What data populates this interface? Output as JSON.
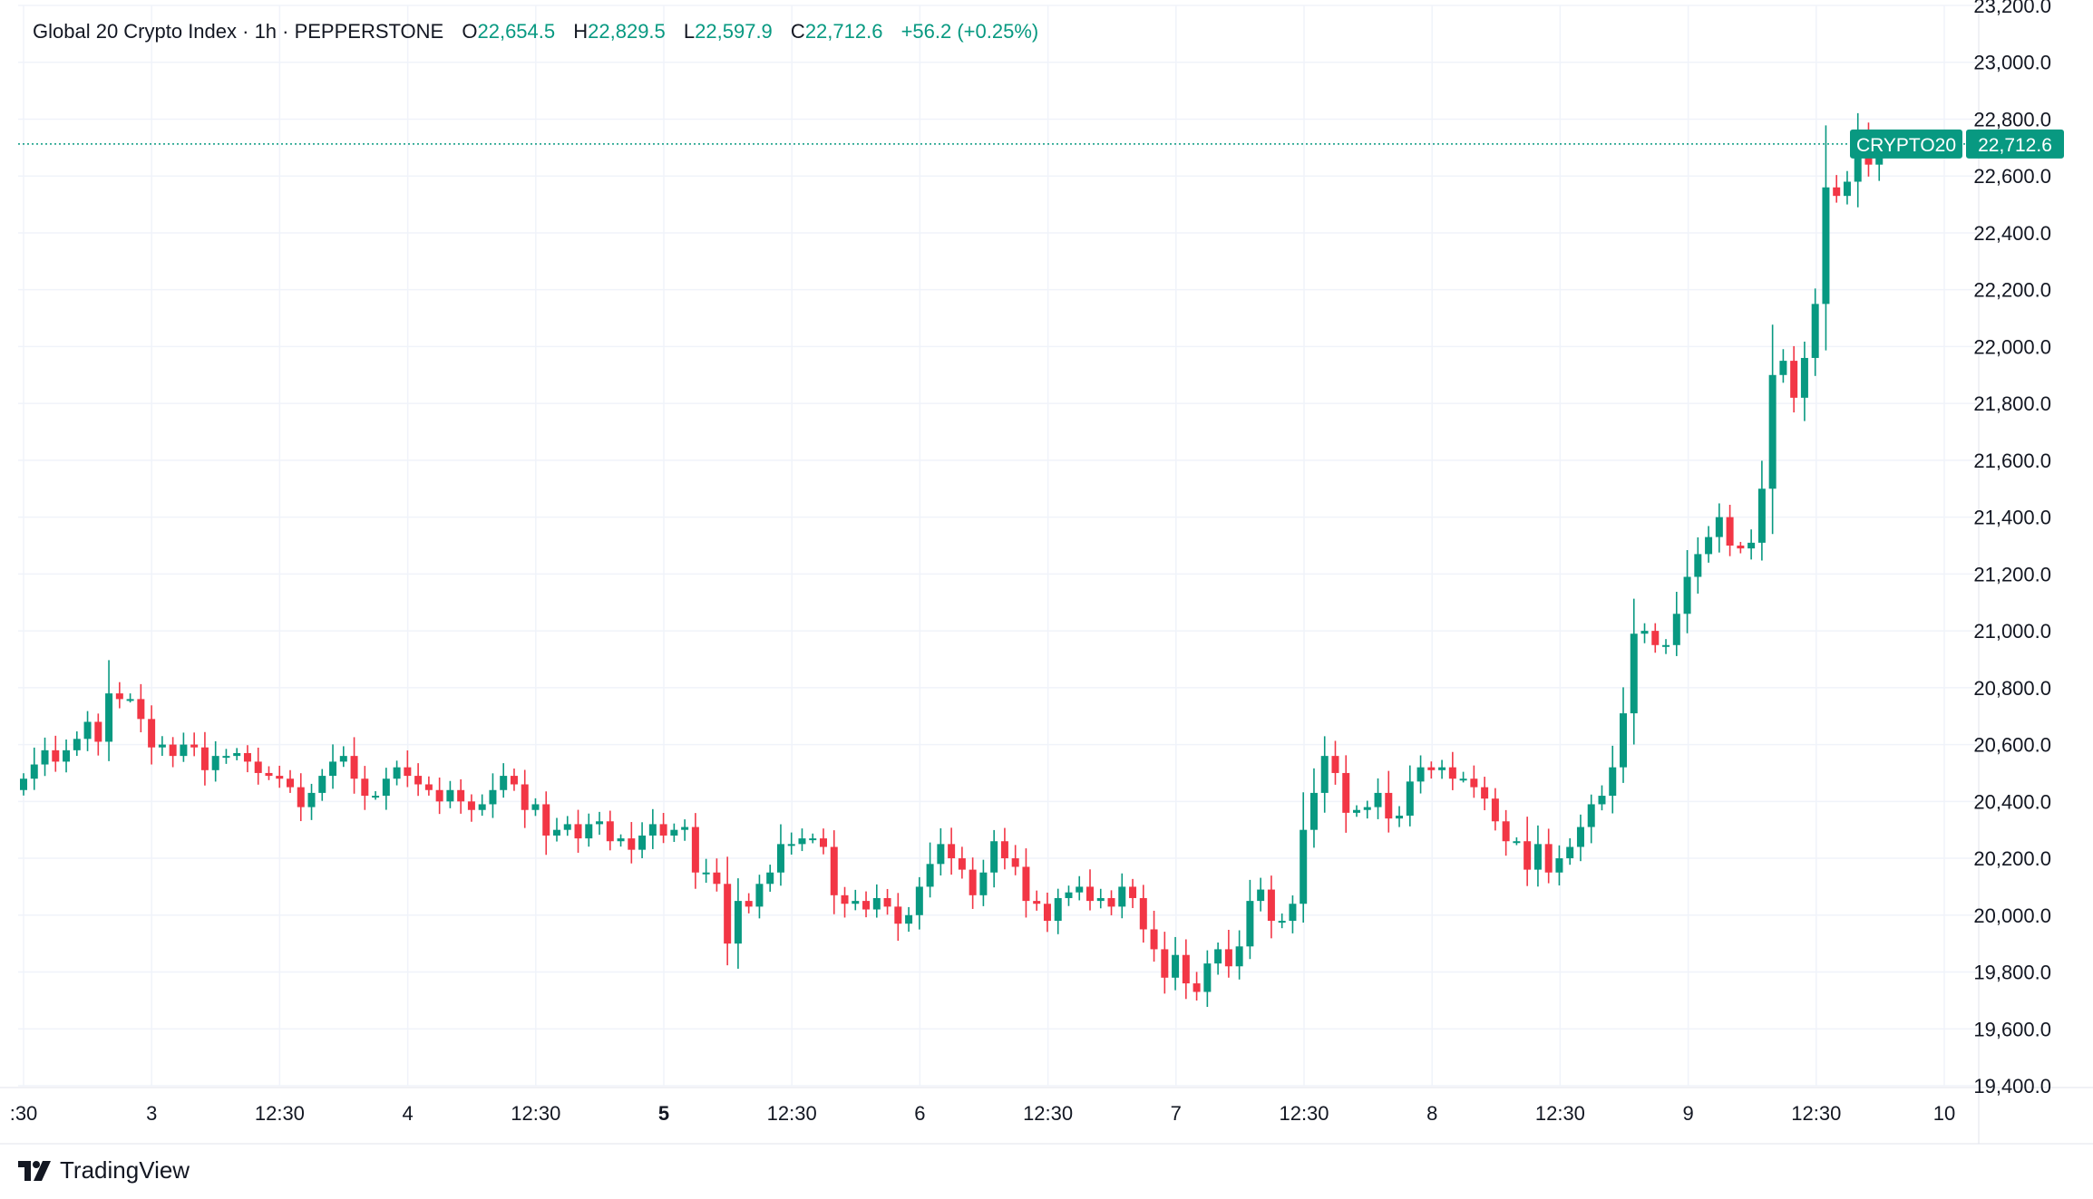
{
  "header": {
    "symbol": "Global 20 Crypto Index · 1h · PEPPERSTONE",
    "open_label": "O",
    "open_value": "22,654.5",
    "high_label": "H",
    "high_value": "22,829.5",
    "low_label": "L",
    "low_value": "22,597.9",
    "close_label": "C",
    "close_value": "22,712.6",
    "change": "+56.2 (+0.25%)"
  },
  "price_tag": {
    "symbol": "CRYPTO20",
    "value": "22,712.6"
  },
  "watermark": {
    "brand": "TradingView",
    "icon": "tradingview-logo-icon"
  },
  "colors": {
    "up": "#089981",
    "down": "#f23645",
    "grid": "#f0f3fa",
    "text": "#131722"
  },
  "chart_data": {
    "type": "candlestick",
    "timeframe": "1h",
    "y_range": [
      19400,
      23200
    ],
    "y_ticks": [
      19400,
      19600,
      19800,
      20000,
      20200,
      20400,
      20600,
      20800,
      21000,
      21200,
      21400,
      21600,
      21800,
      22000,
      22200,
      22400,
      22600,
      22800,
      23000,
      23200
    ],
    "y_tick_labels": [
      "19,400.0",
      "19,600.0",
      "19,800.0",
      "20,000.0",
      "20,200.0",
      "20,400.0",
      "20,600.0",
      "20,800.0",
      "21,000.0",
      "21,200.0",
      "21,400.0",
      "21,600.0",
      "21,800.0",
      "22,000.0",
      "22,200.0",
      "22,400.0",
      "22,600.0",
      "22,800.0",
      "23,000.0",
      "23,200.0"
    ],
    "x_ticks": [
      {
        "label": ":30",
        "bold": false
      },
      {
        "label": "3",
        "bold": false
      },
      {
        "label": "12:30",
        "bold": false
      },
      {
        "label": "4",
        "bold": false
      },
      {
        "label": "12:30",
        "bold": false
      },
      {
        "label": "5",
        "bold": true
      },
      {
        "label": "12:30",
        "bold": false
      },
      {
        "label": "6",
        "bold": false
      },
      {
        "label": "12:30",
        "bold": false
      },
      {
        "label": "7",
        "bold": false
      },
      {
        "label": "12:30",
        "bold": false
      },
      {
        "label": "8",
        "bold": false
      },
      {
        "label": "12:30",
        "bold": false
      },
      {
        "label": "9",
        "bold": false
      },
      {
        "label": "12:30",
        "bold": false
      },
      {
        "label": "10",
        "bold": false
      }
    ],
    "last_price": 22712.6,
    "closes": [
      20480,
      20530,
      20580,
      20540,
      20580,
      20620,
      20680,
      20610,
      20780,
      20760,
      20760,
      20690,
      20590,
      20600,
      20560,
      20600,
      20590,
      20510,
      20560,
      20560,
      20570,
      20540,
      20500,
      20490,
      20480,
      20450,
      20380,
      20430,
      20490,
      20540,
      20560,
      20480,
      20420,
      20420,
      20480,
      20520,
      20490,
      20460,
      20440,
      20400,
      20440,
      20400,
      20370,
      20390,
      20440,
      20490,
      20460,
      20370,
      20390,
      20280,
      20300,
      20320,
      20270,
      20320,
      20330,
      20260,
      20270,
      20230,
      20280,
      20320,
      20280,
      20300,
      20310,
      20150,
      20150,
      20110,
      19900,
      20050,
      20030,
      20110,
      20150,
      20250,
      20250,
      20270,
      20270,
      20240,
      20070,
      20040,
      20050,
      20020,
      20060,
      20030,
      19970,
      20000,
      20100,
      20180,
      20250,
      20200,
      20160,
      20070,
      20150,
      20260,
      20200,
      20170,
      20050,
      20040,
      19980,
      20060,
      20080,
      20100,
      20050,
      20060,
      20030,
      20100,
      20060,
      19950,
      19880,
      19780,
      19860,
      19760,
      19730,
      19830,
      19880,
      19820,
      19890,
      20050,
      20090,
      19980,
      19980,
      20040,
      20300,
      20430,
      20560,
      20500,
      20360,
      20370,
      20380,
      20430,
      20340,
      20350,
      20470,
      20520,
      20510,
      20520,
      20480,
      20480,
      20450,
      20410,
      20330,
      20260,
      20260,
      20160,
      20250,
      20150,
      20200,
      20240,
      20310,
      20390,
      20420,
      20520,
      20710,
      20990,
      21000,
      20950,
      20950,
      21060,
      21190,
      21270,
      21330,
      21400,
      21300,
      21290,
      21310,
      21500,
      21900,
      21950,
      21820,
      21960,
      22150,
      22560,
      22530,
      22580,
      22740,
      22640,
      22710
    ]
  }
}
